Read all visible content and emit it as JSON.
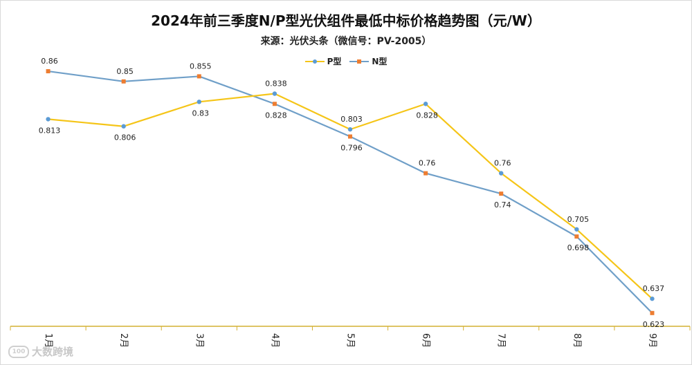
{
  "chart_data": {
    "type": "line",
    "title": "2024年前三季度N/P型光伏组件最低中标价格趋势图（元/W）",
    "subtitle": "来源：光伏头条（微信号：PV-2005）",
    "categories": [
      "1月",
      "2月",
      "3月",
      "4月",
      "5月",
      "6月",
      "7月",
      "8月",
      "9月"
    ],
    "series": [
      {
        "name": "P型",
        "color": "#f5c518",
        "marker_color": "#5b9bd5",
        "marker": "circle",
        "values": [
          0.813,
          0.806,
          0.83,
          0.838,
          0.803,
          0.828,
          0.76,
          0.705,
          0.637
        ],
        "label_text": [
          "0.813",
          "0.806",
          "0.83",
          "0.838",
          "0.803",
          "0.828",
          "0.76",
          "0.705",
          "0.637"
        ],
        "label_pos": [
          "below",
          "below",
          "below",
          "above",
          "above",
          "below",
          "above",
          "above",
          "above"
        ]
      },
      {
        "name": "N型",
        "color": "#6f9fc8",
        "marker_color": "#ed7d31",
        "marker": "square",
        "values": [
          0.86,
          0.85,
          0.855,
          0.828,
          0.796,
          0.76,
          0.74,
          0.698,
          0.623
        ],
        "label_text": [
          "0.86",
          "0.85",
          "0.855",
          "0.828",
          "0.796",
          "0.76",
          "0.74",
          "0.698",
          "0.623"
        ],
        "label_pos": [
          "above",
          "above",
          "above",
          "below",
          "below",
          "above",
          "below",
          "below",
          "below"
        ]
      }
    ],
    "ylim": [
      0.61,
      0.9
    ],
    "legend": "top-center",
    "axis_color": "#d4b030",
    "grid": false
  },
  "watermark": {
    "logo": "100",
    "text": "大数跨境"
  }
}
